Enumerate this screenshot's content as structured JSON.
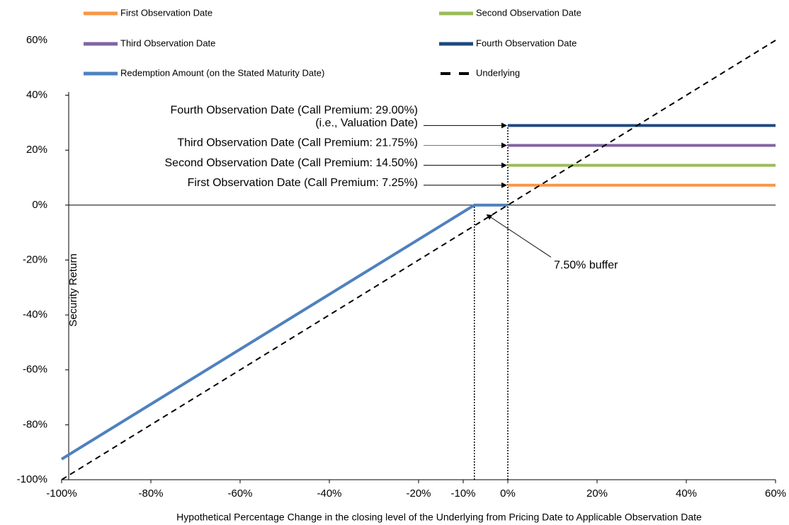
{
  "chart_data": {
    "type": "line",
    "x_label": "Hypothetical Percentage Change in the closing level of the Underlying from Pricing Date to Applicable Observation Date",
    "y_label": "Security Return",
    "xlim": [
      -100,
      60
    ],
    "ylim": [
      -100,
      60
    ],
    "xticks": [
      {
        "value": -100,
        "label": "-100%"
      },
      {
        "value": -80,
        "label": "-80%"
      },
      {
        "value": -60,
        "label": "-60%"
      },
      {
        "value": -40,
        "label": "-40%"
      },
      {
        "value": -20,
        "label": "-20%"
      },
      {
        "value": -10,
        "label": "-10%"
      },
      {
        "value": 0,
        "label": "0%"
      },
      {
        "value": 20,
        "label": "20%"
      },
      {
        "value": 40,
        "label": "40%"
      },
      {
        "value": 60,
        "label": "60%"
      }
    ],
    "yticks": [
      {
        "value": -100,
        "label": "-100%"
      },
      {
        "value": -80,
        "label": "-80%"
      },
      {
        "value": -60,
        "label": "-60%"
      },
      {
        "value": -40,
        "label": "-40%"
      },
      {
        "value": -20,
        "label": "-20%"
      },
      {
        "value": 0,
        "label": "0%"
      },
      {
        "value": 20,
        "label": "20%"
      },
      {
        "value": 40,
        "label": "40%"
      },
      {
        "value": 60,
        "label": "60%"
      }
    ],
    "series": [
      {
        "name": "First Observation Date",
        "color": "#f79646",
        "x": [
          0,
          60
        ],
        "values": [
          7.25,
          7.25
        ]
      },
      {
        "name": "Second Observation Date",
        "color": "#9bbb59",
        "x": [
          0,
          60
        ],
        "values": [
          14.5,
          14.5
        ]
      },
      {
        "name": "Third Observation Date",
        "color": "#8064a2",
        "x": [
          0,
          60
        ],
        "values": [
          21.75,
          21.75
        ]
      },
      {
        "name": "Fourth Observation Date",
        "color": "#1f497d",
        "x": [
          0,
          60
        ],
        "values": [
          29,
          29
        ]
      },
      {
        "name": "Redemption Amount (on the Stated Maturity Date)",
        "color": "#4f81bd",
        "x": [
          -100,
          -7.5,
          0
        ],
        "values": [
          -92.5,
          0,
          0
        ]
      },
      {
        "name": "Underlying",
        "color": "#000000",
        "dashed": true,
        "x": [
          -100,
          60
        ],
        "values": [
          -100,
          60
        ]
      }
    ],
    "reference_lines": [
      {
        "x": -7.5,
        "y_top": 0
      },
      {
        "x": 0,
        "y_top": 29
      }
    ],
    "annotations": [
      {
        "text": [
          "Fourth Observation Date (Call Premium: 29.00%)",
          "(i.e., Valuation Date)"
        ],
        "x": 0,
        "y": 29
      },
      {
        "text": [
          "Third Observation Date (Call Premium: 21.75%)"
        ],
        "x": 0,
        "y": 21.75
      },
      {
        "text": [
          "Second Observation Date (Call Premium: 14.50%)"
        ],
        "x": 0,
        "y": 14.5
      },
      {
        "text": [
          "First Observation Date (Call Premium: 7.25%)"
        ],
        "x": 0,
        "y": 7.25
      },
      {
        "text": [
          "7.50% buffer"
        ],
        "x": -5,
        "y": -3
      }
    ]
  }
}
